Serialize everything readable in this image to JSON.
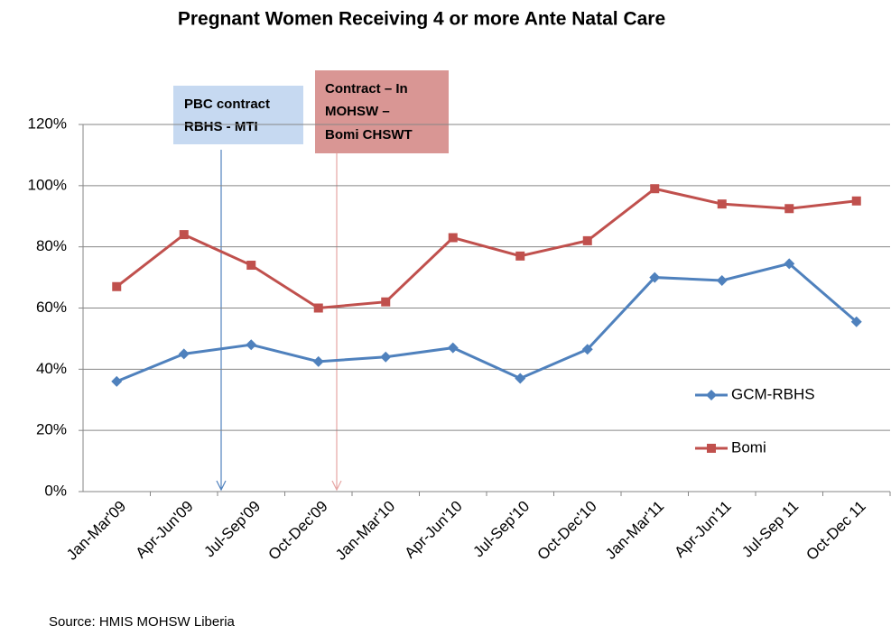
{
  "chart_data": {
    "type": "line",
    "title": "Pregnant Women Receiving 4 or more Ante Natal Care",
    "categories": [
      "Jan-Mar'09",
      "Apr-Jun'09",
      "Jul-Sep'09",
      "Oct-Dec'09",
      "Jan-Mar'10",
      "Apr-Jun'10",
      "Jul-Sep'10",
      "Oct-Dec'10",
      "Jan-Mar'11",
      "Apr-Jun'11",
      "Jul-Sep 11",
      "Oct-Dec 11"
    ],
    "series": [
      {
        "name": "GCM-RBHS",
        "color": "#4f81bd",
        "marker": "diamond",
        "values": [
          36,
          45,
          48,
          42.5,
          44,
          47,
          37,
          46.5,
          70,
          69,
          74.5,
          55.5
        ]
      },
      {
        "name": "Bomi",
        "color": "#c0504d",
        "marker": "square",
        "values": [
          67,
          84,
          74,
          60,
          62,
          83,
          77,
          82,
          99,
          94,
          92.5,
          95
        ]
      }
    ],
    "ylim": [
      0,
      120
    ],
    "yticks": [
      {
        "value": 0,
        "label": "0%"
      },
      {
        "value": 20,
        "label": "20%"
      },
      {
        "value": 40,
        "label": "40%"
      },
      {
        "value": 60,
        "label": "60%"
      },
      {
        "value": 80,
        "label": "80%"
      },
      {
        "value": 100,
        "label": "100%"
      },
      {
        "value": 120,
        "label": "120%"
      }
    ],
    "grid": true,
    "legend": "right",
    "annotations": [
      {
        "lines": [
          "PBC contract",
          "RBHS - MTI"
        ]
      },
      {
        "lines": [
          "Contract – In",
          "MOHSW –",
          "Bomi CHSWT"
        ]
      }
    ],
    "source": "Source: HMIS MOHSW Liberia"
  }
}
